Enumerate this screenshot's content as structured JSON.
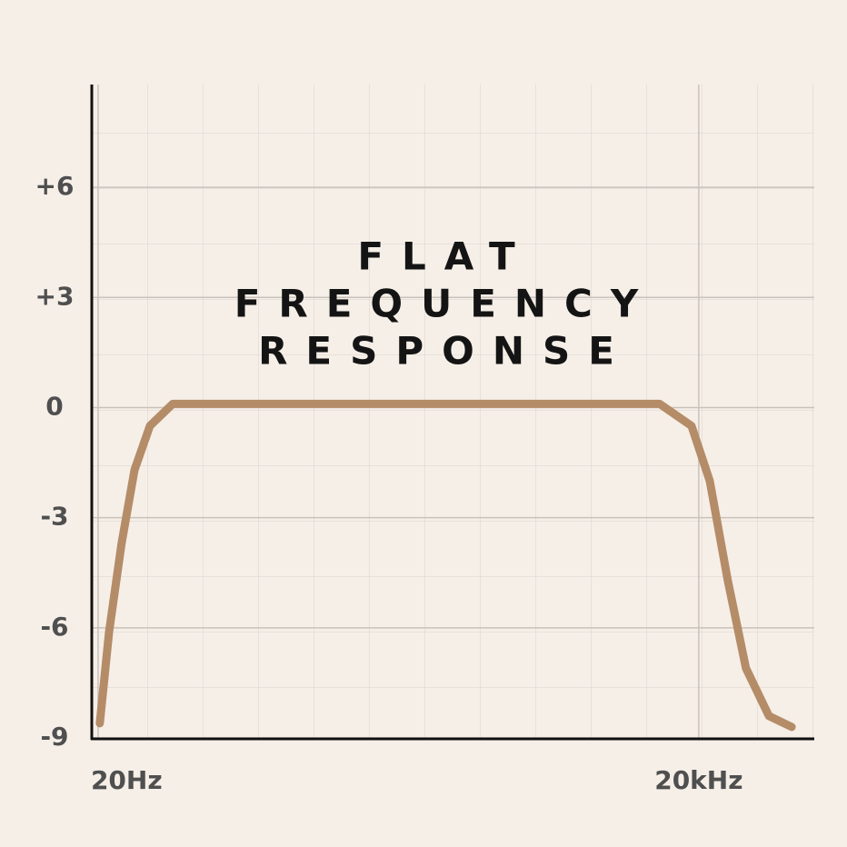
{
  "chart_data": {
    "type": "line",
    "title": [
      "FLAT",
      "FREQUENCY",
      "RESPONSE"
    ],
    "x": [
      20.4,
      22.7,
      26.2,
      30.4,
      36.3,
      47.2,
      718,
      12760,
      18400,
      22700,
      27900,
      34400,
      44800,
      58200
    ],
    "series": [
      {
        "color": "#b58c68",
        "values": [
          -8.6,
          -6.1,
          -3.7,
          -1.7,
          -0.5,
          0.1,
          0.1,
          0.1,
          -0.5,
          -2,
          -4.7,
          -7.1,
          -8.4,
          -8.7
        ]
      }
    ],
    "xscale": "log",
    "xlim": [
      18.6,
      75500
    ],
    "xticks": [
      {
        "value": 20,
        "label": "20Hz"
      },
      {
        "value": 20000,
        "label": "20kHz"
      }
    ],
    "ylim": [
      -9,
      8.8
    ],
    "yticks": [
      {
        "value": 6,
        "label": "+6"
      },
      {
        "value": 3,
        "label": "+3"
      },
      0,
      -3,
      -6,
      -9
    ],
    "grid": true
  }
}
